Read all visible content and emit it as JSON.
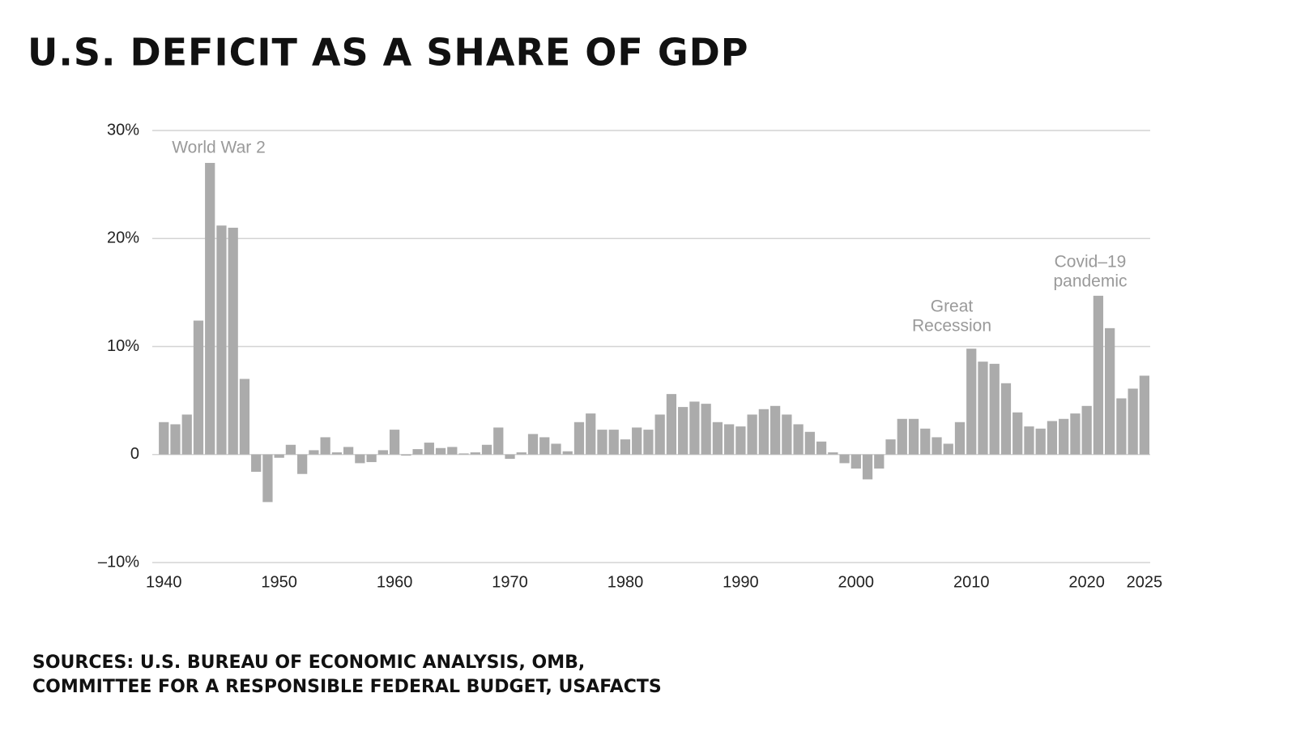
{
  "chart_data": {
    "type": "bar",
    "title": "U.S. DEFICIT AS A SHARE OF GDP",
    "source": [
      "SOURCES: U.S. BUREAU OF ECONOMIC ANALYSIS, OMB,",
      "COMMITTEE FOR A RESPONSIBLE FEDERAL BUDGET, USAFACTS"
    ],
    "x": [
      1940,
      1941,
      1942,
      1943,
      1944,
      1945,
      1946,
      1947,
      1948,
      1949,
      1950,
      1951,
      1952,
      1953,
      1954,
      1955,
      1956,
      1957,
      1958,
      1959,
      1960,
      1961,
      1962,
      1963,
      1964,
      1965,
      1966,
      1967,
      1968,
      1969,
      1970,
      1971,
      1972,
      1973,
      1974,
      1975,
      1976,
      1977,
      1978,
      1979,
      1980,
      1981,
      1982,
      1983,
      1984,
      1985,
      1986,
      1987,
      1988,
      1989,
      1990,
      1991,
      1992,
      1993,
      1994,
      1995,
      1996,
      1997,
      1998,
      1999,
      2000,
      2001,
      2002,
      2003,
      2004,
      2005,
      2006,
      2007,
      2008,
      2009,
      2010,
      2011,
      2012,
      2013,
      2014,
      2015,
      2016,
      2017,
      2018,
      2019,
      2020,
      2021,
      2022,
      2023,
      2024,
      2025
    ],
    "values": [
      3.0,
      2.8,
      3.7,
      12.4,
      27.0,
      21.2,
      21.0,
      7.0,
      -1.6,
      -4.4,
      -0.3,
      0.9,
      -1.8,
      0.4,
      1.6,
      0.2,
      0.7,
      -0.8,
      -0.7,
      0.4,
      2.3,
      -0.1,
      0.5,
      1.1,
      0.6,
      0.7,
      0.1,
      0.2,
      0.9,
      2.5,
      -0.4,
      0.2,
      1.9,
      1.6,
      1.0,
      0.3,
      3.0,
      3.8,
      2.3,
      2.3,
      1.4,
      2.5,
      2.3,
      3.7,
      5.6,
      4.4,
      4.9,
      4.7,
      3.0,
      2.8,
      2.6,
      3.7,
      4.2,
      4.5,
      3.7,
      2.8,
      2.1,
      1.2,
      0.2,
      -0.8,
      -1.3,
      -2.3,
      -1.3,
      1.4,
      3.3,
      3.3,
      2.4,
      1.6,
      1.0,
      3.0,
      9.8,
      8.6,
      8.4,
      6.6,
      3.9,
      2.6,
      2.4,
      3.1,
      3.3,
      3.8,
      4.5,
      14.7,
      11.7,
      5.2,
      6.1,
      7.3
    ],
    "color": "#ababab",
    "xlim": [
      1939,
      2025.5
    ],
    "xticks": [
      1940,
      1950,
      1960,
      1970,
      1980,
      1990,
      2000,
      2010,
      2020,
      2025
    ],
    "ylim": [
      -10,
      30
    ],
    "yticks": [
      {
        "value": -10,
        "label": "–10%"
      },
      0,
      {
        "value": 10,
        "label": "10%"
      },
      {
        "value": 20,
        "label": "20%"
      },
      {
        "value": 30,
        "label": "30%"
      }
    ],
    "grid": true,
    "annotations": [
      {
        "text": [
          "World War 2"
        ]
      },
      {
        "text": [
          "Great",
          "Recession"
        ]
      },
      {
        "text": [
          "Covid–19",
          "pandemic"
        ]
      }
    ]
  }
}
